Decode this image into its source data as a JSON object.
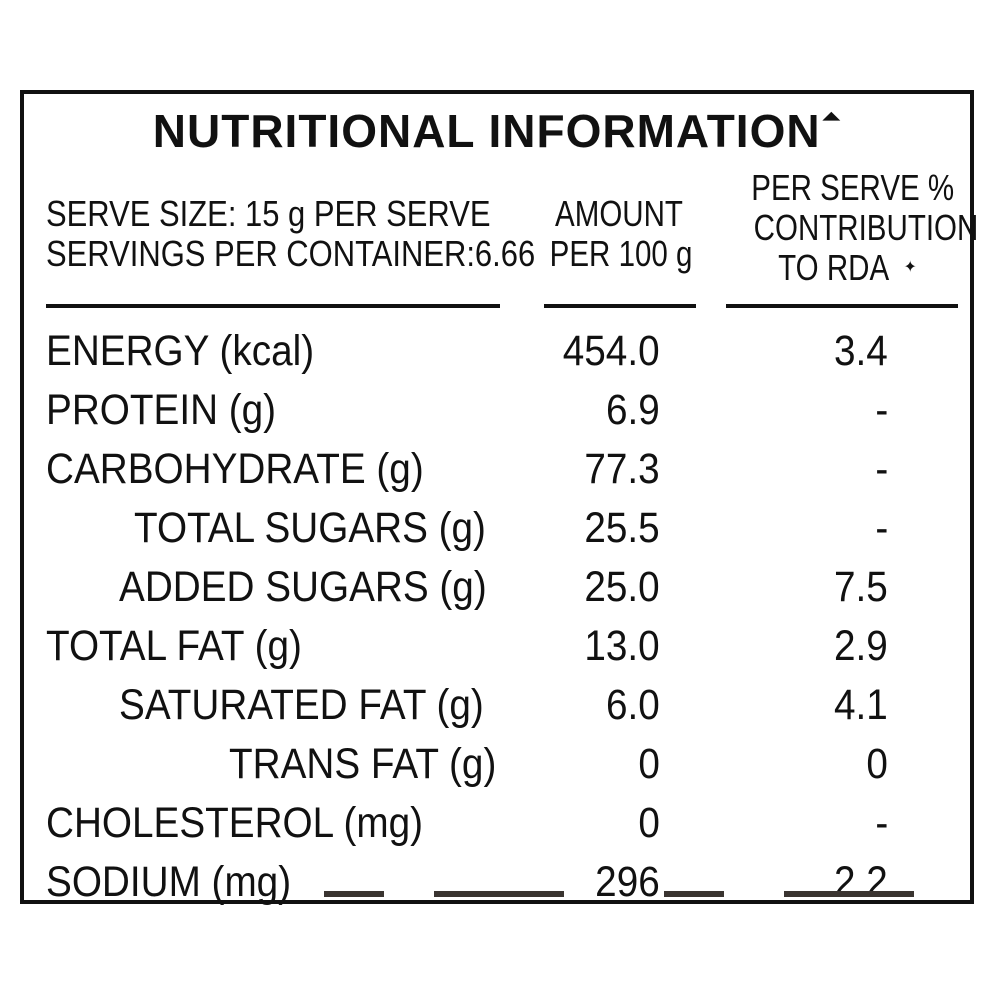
{
  "title": "NUTRITIONAL INFORMATION",
  "title_mark": "⏶",
  "header": {
    "serve_size": "SERVE SIZE: 15 g PER SERVE",
    "servings": "SERVINGS PER CONTAINER:6.66",
    "amount_line1": "AMOUNT",
    "amount_line2": "PER 100 g",
    "rda_line1": "PER SERVE %",
    "rda_line2": "CONTRIBUTION",
    "rda_line3": "TO RDA",
    "rda_mark": "✦"
  },
  "rows": [
    {
      "name": "ENERGY (kcal)",
      "amount": "454.0",
      "rda": "3.4"
    },
    {
      "name": "PROTEIN (g)",
      "amount": "6.9",
      "rda": "-"
    },
    {
      "name": "CARBOHYDRATE (g)",
      "amount": "77.3",
      "rda": "-"
    },
    {
      "name": "TOTAL SUGARS (g)",
      "amount": "25.5",
      "rda": "-"
    },
    {
      "name": "ADDED SUGARS (g)",
      "amount": "25.0",
      "rda": "7.5"
    },
    {
      "name": "TOTAL FAT (g)",
      "amount": "13.0",
      "rda": "2.9"
    },
    {
      "name": "SATURATED FAT (g)",
      "amount": "6.0",
      "rda": "4.1"
    },
    {
      "name": "TRANS FAT (g)",
      "amount": "0",
      "rda": "0"
    },
    {
      "name": "CHOLESTEROL (mg)",
      "amount": "0",
      "rda": "-"
    },
    {
      "name": "SODIUM (mg)",
      "amount": "296",
      "rda": "2.2"
    }
  ],
  "colors": {
    "ink": "#111111",
    "background": "#ffffff"
  }
}
